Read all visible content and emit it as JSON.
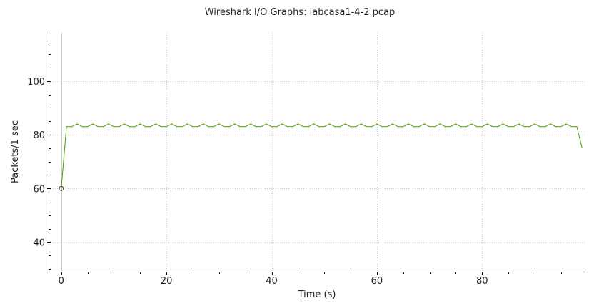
{
  "window": {
    "title": "Wireshark I/O Graphs: labcasa1-4-2.pcap"
  },
  "chart_data": {
    "type": "line",
    "title": "Wireshark I/O Graphs: labcasa1-4-2.pcap",
    "xlabel": "Time (s)",
    "ylabel": "Packets/1 sec",
    "xlim": [
      -2,
      99.5
    ],
    "ylim": [
      29,
      118
    ],
    "xticks": [
      0,
      20,
      40,
      60,
      80
    ],
    "yticks": [
      40,
      60,
      80,
      100
    ],
    "grid": true,
    "legend": "none",
    "series": [
      {
        "color": "#4e9a06",
        "marker_first_point": true,
        "x": [
          0,
          1,
          2,
          3,
          4,
          5,
          6,
          7,
          8,
          9,
          10,
          11,
          12,
          13,
          14,
          15,
          16,
          17,
          18,
          19,
          20,
          21,
          22,
          23,
          24,
          25,
          26,
          27,
          28,
          29,
          30,
          31,
          32,
          33,
          34,
          35,
          36,
          37,
          38,
          39,
          40,
          41,
          42,
          43,
          44,
          45,
          46,
          47,
          48,
          49,
          50,
          51,
          52,
          53,
          54,
          55,
          56,
          57,
          58,
          59,
          60,
          61,
          62,
          63,
          64,
          65,
          66,
          67,
          68,
          69,
          70,
          71,
          72,
          73,
          74,
          75,
          76,
          77,
          78,
          79,
          80,
          81,
          82,
          83,
          84,
          85,
          86,
          87,
          88,
          89,
          90,
          91,
          92,
          93,
          94,
          95,
          96,
          97,
          98,
          99
        ],
        "values": [
          60,
          83,
          83,
          84,
          83,
          83,
          84,
          83,
          83,
          84,
          83,
          83,
          84,
          83,
          83,
          84,
          83,
          83,
          84,
          83,
          83,
          84,
          83,
          83,
          84,
          83,
          83,
          84,
          83,
          83,
          84,
          83,
          83,
          84,
          83,
          83,
          84,
          83,
          83,
          84,
          83,
          83,
          84,
          83,
          83,
          84,
          83,
          83,
          84,
          83,
          83,
          84,
          83,
          83,
          84,
          83,
          83,
          84,
          83,
          83,
          84,
          83,
          83,
          84,
          83,
          83,
          84,
          83,
          83,
          84,
          83,
          83,
          84,
          83,
          83,
          84,
          83,
          83,
          84,
          83,
          83,
          84,
          83,
          83,
          84,
          83,
          83,
          84,
          83,
          83,
          84,
          83,
          83,
          84,
          83,
          83,
          84,
          83,
          83,
          75
        ]
      }
    ]
  }
}
